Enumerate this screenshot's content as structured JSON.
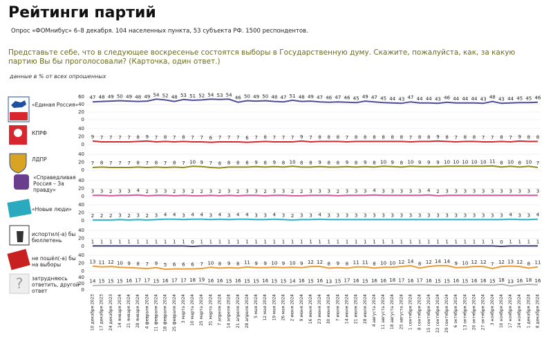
{
  "chart_data": {
    "type": "line",
    "title": "Рейтинги партий",
    "subtitle": "Опрос «ФОМнибус» 6–8 декабря. 104 населенных пункта, 53 субъекта РФ. 1500 респондентов.",
    "question": "Представьте себе, что в следующее воскресенье состоятся выборы в Государственную думу. Скажите, пожалуйста, как, за какую партию Вы бы проголосовали? (Карточка, один ответ.)",
    "note": "данные в % от всех опрошенных",
    "x": [
      "10 декабря 2023",
      "17 декабря 2023",
      "24 декабря 2023",
      "14 января 2024",
      "21 января 2024",
      "28 января 2024",
      "4 февраля 2024",
      "11 февраля 2024",
      "18 февраля 2024",
      "25 февраля 2024",
      "3 марта 2024",
      "10 марта 2024",
      "25 марта 2024",
      "31 марта 2024",
      "7 апреля 2024",
      "14 апреля 2024",
      "21 апреля 2024",
      "28 апреля 2024",
      "5 мая 2024",
      "12 мая 2024",
      "19 мая 2024",
      "26 мая 2024",
      "2 июня 2024",
      "9 июня 2024",
      "16 июня 2024",
      "23 июня 2024",
      "30 июня 2024",
      "7 июля 2024",
      "14 июля 2024",
      "21 июля 2024",
      "28 июля 2024",
      "4 августа 2024",
      "11 августа 2024",
      "18 августа 2024",
      "25 августа 2024",
      "1 сентября 2024",
      "8 сентября 2024",
      "15 сентября 2024",
      "22 сентября 2024",
      "29 сентября 2024",
      "6 октября 2024",
      "13 октября 2024",
      "20 октября 2024",
      "27 октября 2024",
      "3 ноября 2024",
      "10 ноября 2024",
      "17 ноября 2024",
      "24 ноября 2024",
      "1 декабря 2024",
      "8 декабря 2024"
    ],
    "series": [
      {
        "name": "«Единая Россия»",
        "color": "#4b4a96",
        "ylim": [
          0,
          60
        ],
        "yticks": [
          0,
          20,
          40,
          60
        ],
        "values": [
          47,
          48,
          49,
          50,
          49,
          48,
          49,
          54,
          52,
          48,
          53,
          51,
          52,
          54,
          53,
          54,
          46,
          50,
          49,
          50,
          48,
          47,
          51,
          48,
          49,
          47,
          46,
          47,
          46,
          45,
          49,
          47,
          45,
          44,
          43,
          47,
          44,
          44,
          43,
          46,
          44,
          44,
          44,
          43,
          48,
          43,
          44,
          45,
          45,
          46
        ]
      },
      {
        "name": "КПРФ",
        "color": "#d7262d",
        "ylim": [
          0,
          40
        ],
        "yticks": [
          0,
          20,
          40
        ],
        "values": [
          9,
          7,
          7,
          7,
          7,
          8,
          9,
          7,
          8,
          7,
          8,
          7,
          7,
          6,
          7,
          7,
          7,
          6,
          7,
          8,
          7,
          7,
          7,
          9,
          7,
          8,
          8,
          8,
          7,
          8,
          8,
          8,
          8,
          8,
          8,
          7,
          8,
          8,
          9,
          8,
          7,
          8,
          8,
          7,
          7,
          8,
          7,
          9,
          8,
          8
        ]
      },
      {
        "name": "ЛДПР",
        "color": "#8c8c1c",
        "ylim": [
          0,
          40
        ],
        "yticks": [
          0,
          20,
          40
        ],
        "values": [
          7,
          8,
          7,
          7,
          7,
          8,
          7,
          8,
          7,
          8,
          7,
          10,
          9,
          7,
          6,
          8,
          8,
          8,
          9,
          8,
          9,
          8,
          10,
          8,
          8,
          9,
          8,
          8,
          9,
          8,
          9,
          8,
          10,
          9,
          8,
          10,
          9,
          9,
          9,
          10,
          10,
          10,
          10,
          10,
          11,
          8,
          10,
          8,
          10,
          7
        ]
      },
      {
        "name": "«Справедливая Россия – За правду»",
        "color": "#d4599b",
        "ylim": [
          0,
          40
        ],
        "yticks": [
          0,
          20,
          40
        ],
        "values": [
          3,
          3,
          2,
          3,
          3,
          4,
          2,
          3,
          3,
          2,
          3,
          2,
          2,
          3,
          2,
          3,
          2,
          3,
          3,
          2,
          3,
          3,
          2,
          2,
          3,
          3,
          3,
          2,
          3,
          3,
          3,
          4,
          3,
          3,
          3,
          3,
          3,
          4,
          2,
          3,
          3,
          3,
          3,
          3,
          3,
          3,
          3,
          3,
          3,
          3
        ]
      },
      {
        "name": "«Новые люди»",
        "color": "#28b3c6",
        "ylim": [
          0,
          40
        ],
        "yticks": [
          0,
          20,
          40
        ],
        "values": [
          2,
          2,
          2,
          3,
          2,
          3,
          2,
          3,
          4,
          4,
          3,
          4,
          4,
          3,
          4,
          3,
          4,
          4,
          3,
          3,
          4,
          3,
          2,
          3,
          3,
          4,
          3,
          3,
          3,
          3,
          3,
          3,
          3,
          3,
          3,
          3,
          3,
          3,
          3,
          3,
          3,
          3,
          3,
          3,
          3,
          3,
          4,
          3,
          3,
          4
        ]
      },
      {
        "name": "испортил(-а) бы бюллетень",
        "color": "#35356e",
        "ylim": [
          0,
          40
        ],
        "yticks": [
          0,
          20,
          40
        ],
        "values": [
          1,
          1,
          1,
          1,
          1,
          1,
          1,
          1,
          1,
          1,
          1,
          0,
          1,
          1,
          1,
          1,
          1,
          1,
          1,
          1,
          1,
          1,
          1,
          1,
          1,
          1,
          1,
          1,
          1,
          1,
          1,
          1,
          1,
          1,
          1,
          1,
          1,
          1,
          1,
          1,
          1,
          1,
          1,
          1,
          1,
          0,
          1,
          1,
          1,
          1
        ]
      },
      {
        "name": "не пошёл(-а) бы на выборы",
        "color": "#ec9a35",
        "ylim": [
          0,
          40
        ],
        "yticks": [
          0,
          20,
          40
        ],
        "values": [
          13,
          11,
          12,
          10,
          9,
          8,
          7,
          9,
          5,
          6,
          6,
          6,
          7,
          10,
          8,
          9,
          8,
          11,
          9,
          9,
          10,
          9,
          10,
          9,
          12,
          12,
          8,
          9,
          8,
          11,
          11,
          8,
          10,
          10,
          12,
          14,
          8,
          12,
          14,
          14,
          9,
          10,
          12,
          12,
          7,
          12,
          13,
          12,
          8,
          11
        ]
      },
      {
        "name": "затрудняюсь ответить, другой ответ",
        "color": "#b5b5b5",
        "ylim": [
          0,
          40
        ],
        "yticks": [
          0,
          20,
          40
        ],
        "values": [
          14,
          15,
          15,
          15,
          16,
          17,
          17,
          15,
          16,
          17,
          17,
          18,
          19,
          16,
          16,
          15,
          16,
          15,
          15,
          16,
          15,
          15,
          14,
          16,
          15,
          16,
          13,
          15,
          17,
          16,
          15,
          16,
          16,
          18,
          17,
          16,
          17,
          16,
          15,
          15,
          16,
          15,
          16,
          16,
          15,
          18,
          13,
          16,
          18,
          16
        ]
      }
    ]
  }
}
